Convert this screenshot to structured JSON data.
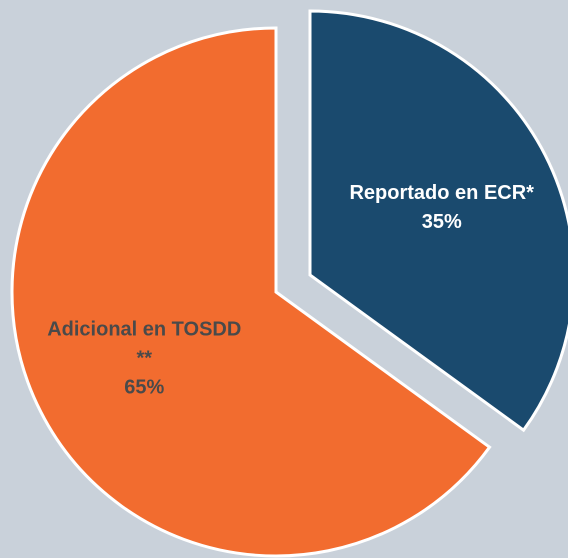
{
  "chart_data": {
    "type": "pie",
    "categories": [
      "Reportado en ECR*",
      "Adicional en TOSDD **"
    ],
    "values": [
      35,
      65
    ],
    "value_labels": [
      "35%",
      "65%"
    ],
    "colors": [
      "#1a4a6e",
      "#f26c2f"
    ],
    "label_colors": [
      "#ffffff",
      "#4a4a4a"
    ]
  }
}
